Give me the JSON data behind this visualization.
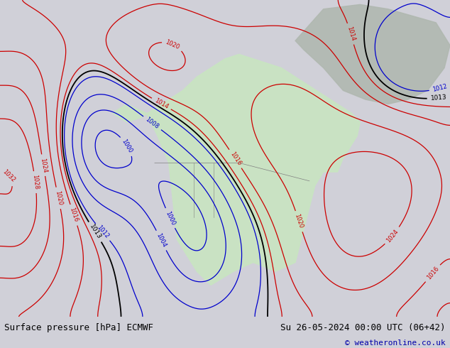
{
  "title_left": "Surface pressure [hPa] ECMWF",
  "title_right": "Su 26-05-2024 00:00 UTC (06+42)",
  "copyright": "© weatheronline.co.uk",
  "bg_color": "#d0d0d8",
  "land_color": "#c8e6c0",
  "ocean_color": "#d0d0d8",
  "isobar_color_low": "#0000cc",
  "isobar_color_high": "#cc0000",
  "isobar_color_1013": "#000000",
  "bottom_bar_color": "#e8e8e8",
  "bottom_text_color": "#000000",
  "figsize": [
    6.34,
    4.9
  ],
  "dpi": 100
}
